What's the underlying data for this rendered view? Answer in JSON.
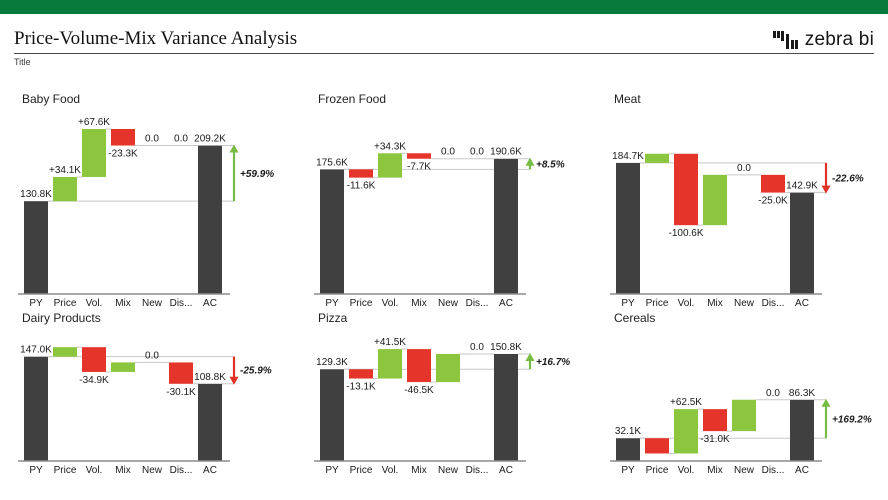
{
  "page": {
    "top_bar_color": "#077A3B",
    "background": "#ffffff"
  },
  "header": {
    "title": "Price-Volume-Mix Variance Analysis",
    "subtitle": "Title",
    "logo_text": "zebra bi",
    "logo_icon": "waterfall-bars-icon"
  },
  "chart_data": {
    "type": "waterfall",
    "layout": "small-multiples-3x2",
    "categories": [
      "PY",
      "Price",
      "Vol.",
      "Mix",
      "New",
      "Dis...",
      "AC"
    ],
    "unit": "K",
    "shared_scale_max": 232.5,
    "grid": "off",
    "colors": {
      "total": "#404040",
      "increase": "#8CC63F",
      "decrease": "#E5352B",
      "variance_up": "#76BC43",
      "variance_down": "#E03226",
      "connector": "#C8C8C8",
      "axis": "#8C8C8C"
    },
    "charts": [
      {
        "title": "Baby Food",
        "points": [
          {
            "cat": "PY",
            "type": "total",
            "value": 130.8,
            "label": "130.8K"
          },
          {
            "cat": "Price",
            "type": "delta",
            "value": 34.1,
            "label": "+34.1K"
          },
          {
            "cat": "Vol.",
            "type": "delta",
            "value": 67.6,
            "label": "+67.6K"
          },
          {
            "cat": "Mix",
            "type": "delta",
            "value": -23.3,
            "label": "-23.3K"
          },
          {
            "cat": "New",
            "type": "delta",
            "value": 0,
            "label": "0.0"
          },
          {
            "cat": "Dis...",
            "type": "delta",
            "value": 0,
            "label": "0.0"
          },
          {
            "cat": "AC",
            "type": "total",
            "value": 209.2,
            "label": "209.2K"
          }
        ],
        "variance": {
          "label": "+59.9%",
          "direction": "up"
        }
      },
      {
        "title": "Frozen Food",
        "points": [
          {
            "cat": "PY",
            "type": "total",
            "value": 175.6,
            "label": "175.6K"
          },
          {
            "cat": "Price",
            "type": "delta",
            "value": -11.6,
            "label": "-11.6K"
          },
          {
            "cat": "Vol.",
            "type": "delta",
            "value": 34.3,
            "label": "+34.3K"
          },
          {
            "cat": "Mix",
            "type": "delta",
            "value": -7.7,
            "label": "-7.7K"
          },
          {
            "cat": "New",
            "type": "delta",
            "value": 0,
            "label": "0.0"
          },
          {
            "cat": "Dis...",
            "type": "delta",
            "value": 0,
            "label": "0.0"
          },
          {
            "cat": "AC",
            "type": "total",
            "value": 190.6,
            "label": "190.6K"
          }
        ],
        "variance": {
          "label": "+8.5%",
          "direction": "up"
        }
      },
      {
        "title": "Meat",
        "points": [
          {
            "cat": "PY",
            "type": "total",
            "value": 184.7,
            "label": "184.7K"
          },
          {
            "cat": "Price",
            "type": "delta",
            "value": 12.9,
            "label": ""
          },
          {
            "cat": "Vol.",
            "type": "delta",
            "value": -100.6,
            "label": "-100.6K"
          },
          {
            "cat": "Mix",
            "type": "delta",
            "value": 70.9,
            "label": ""
          },
          {
            "cat": "New",
            "type": "delta",
            "value": 0,
            "label": "0.0"
          },
          {
            "cat": "Dis...",
            "type": "delta",
            "value": -25.0,
            "label": "-25.0K"
          },
          {
            "cat": "AC",
            "type": "total",
            "value": 142.9,
            "label": "142.9K"
          }
        ],
        "variance": {
          "label": "-22.6%",
          "direction": "down"
        }
      },
      {
        "title": "Dairy Products",
        "points": [
          {
            "cat": "PY",
            "type": "total",
            "value": 147.0,
            "label": "147.0K"
          },
          {
            "cat": "Price",
            "type": "delta",
            "value": 13.4,
            "label": ""
          },
          {
            "cat": "Vol.",
            "type": "delta",
            "value": -34.9,
            "label": "-34.9K"
          },
          {
            "cat": "Mix",
            "type": "delta",
            "value": 13.4,
            "label": ""
          },
          {
            "cat": "New",
            "type": "delta",
            "value": 0,
            "label": "0.0"
          },
          {
            "cat": "Dis...",
            "type": "delta",
            "value": -30.1,
            "label": "-30.1K"
          },
          {
            "cat": "AC",
            "type": "total",
            "value": 108.8,
            "label": "108.8K"
          }
        ],
        "variance": {
          "label": "-25.9%",
          "direction": "down"
        }
      },
      {
        "title": "Pizza",
        "points": [
          {
            "cat": "PY",
            "type": "total",
            "value": 129.3,
            "label": "129.3K"
          },
          {
            "cat": "Price",
            "type": "delta",
            "value": -13.1,
            "label": "-13.1K"
          },
          {
            "cat": "Vol.",
            "type": "delta",
            "value": 41.5,
            "label": "+41.5K"
          },
          {
            "cat": "Mix",
            "type": "delta",
            "value": -46.5,
            "label": "-46.5K"
          },
          {
            "cat": "New",
            "type": "delta",
            "value": 39.6,
            "label": ""
          },
          {
            "cat": "Dis...",
            "type": "delta",
            "value": 0,
            "label": "0.0"
          },
          {
            "cat": "AC",
            "type": "total",
            "value": 150.8,
            "label": "150.8K"
          }
        ],
        "variance": {
          "label": "+16.7%",
          "direction": "up"
        }
      },
      {
        "title": "Cereals",
        "points": [
          {
            "cat": "PY",
            "type": "total",
            "value": 32.1,
            "label": "32.1K"
          },
          {
            "cat": "Price",
            "type": "delta",
            "value": -21.5,
            "label": ""
          },
          {
            "cat": "Vol.",
            "type": "delta",
            "value": 62.5,
            "label": "+62.5K"
          },
          {
            "cat": "Mix",
            "type": "delta",
            "value": -31.0,
            "label": "-31.0K"
          },
          {
            "cat": "New",
            "type": "delta",
            "value": 44.2,
            "label": ""
          },
          {
            "cat": "Dis...",
            "type": "delta",
            "value": 0,
            "label": "0.0"
          },
          {
            "cat": "AC",
            "type": "total",
            "value": 86.3,
            "label": "86.3K"
          }
        ],
        "variance": {
          "label": "+169.2%",
          "direction": "up"
        }
      }
    ]
  }
}
